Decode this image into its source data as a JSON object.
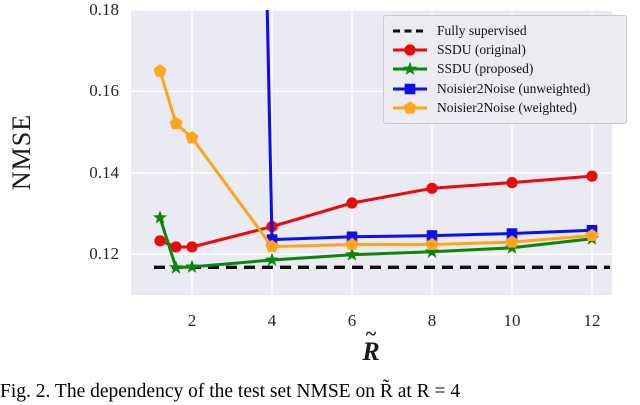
{
  "figure": {
    "caption": "Fig. 2. The dependency of the test set NMSE on R̃ at R = 4"
  },
  "chart_data": {
    "type": "line",
    "title": "",
    "xlabel": "R",
    "xlabel_accent": "~",
    "ylabel": "NMSE",
    "xlim": [
      0.475,
      12.5
    ],
    "ylim": [
      0.11,
      0.18
    ],
    "xticks": [
      2,
      4,
      6,
      8,
      10,
      12
    ],
    "yticks": [
      0.12,
      0.14,
      0.16,
      0.18
    ],
    "ytick_labels": [
      "0.12",
      "0.14",
      "0.16",
      "0.18"
    ],
    "grid": true,
    "background": "#eaeaf2",
    "grid_color": "#ffffff",
    "legend_position": "upper right",
    "series": [
      {
        "name": "Fully supervised",
        "color": "#0d0d0d",
        "style": "dashed",
        "marker": "none",
        "type": "hline",
        "y": 0.1168,
        "x_start": 1.05,
        "x_end": 12.45
      },
      {
        "name": "SSDU (original)",
        "color": "#e9090f",
        "style": "solid",
        "marker": "circle",
        "x": [
          1.2,
          1.6,
          2,
          4,
          6,
          8,
          10,
          12
        ],
        "y": [
          0.1233,
          0.1218,
          0.1218,
          0.1268,
          0.1326,
          0.1362,
          0.1376,
          0.1392
        ]
      },
      {
        "name": "SSDU (proposed)",
        "color": "#0b860b",
        "style": "solid",
        "marker": "star",
        "x": [
          1.2,
          1.6,
          2,
          4,
          6,
          8,
          10,
          12
        ],
        "y": [
          0.129,
          0.1167,
          0.1169,
          0.1186,
          0.1199,
          0.1206,
          0.1216,
          0.1238
        ]
      },
      {
        "name": "Noisier2Noise (unweighted)",
        "color": "#0d0df0",
        "style": "solid",
        "marker": "square",
        "enters_from_top_x": 3.875,
        "x": [
          4,
          6,
          8,
          10,
          12
        ],
        "y": [
          0.1236,
          0.1243,
          0.1246,
          0.1251,
          0.1259
        ]
      },
      {
        "name": "Noisier2Noise (weighted)",
        "color": "#ffa51a",
        "style": "solid",
        "marker": "pentagon",
        "x": [
          1.2,
          1.6,
          2,
          4,
          6,
          8,
          10,
          12
        ],
        "y": [
          0.165,
          0.1521,
          0.1486,
          0.1219,
          0.1224,
          0.1224,
          0.123,
          0.1246
        ]
      }
    ]
  }
}
